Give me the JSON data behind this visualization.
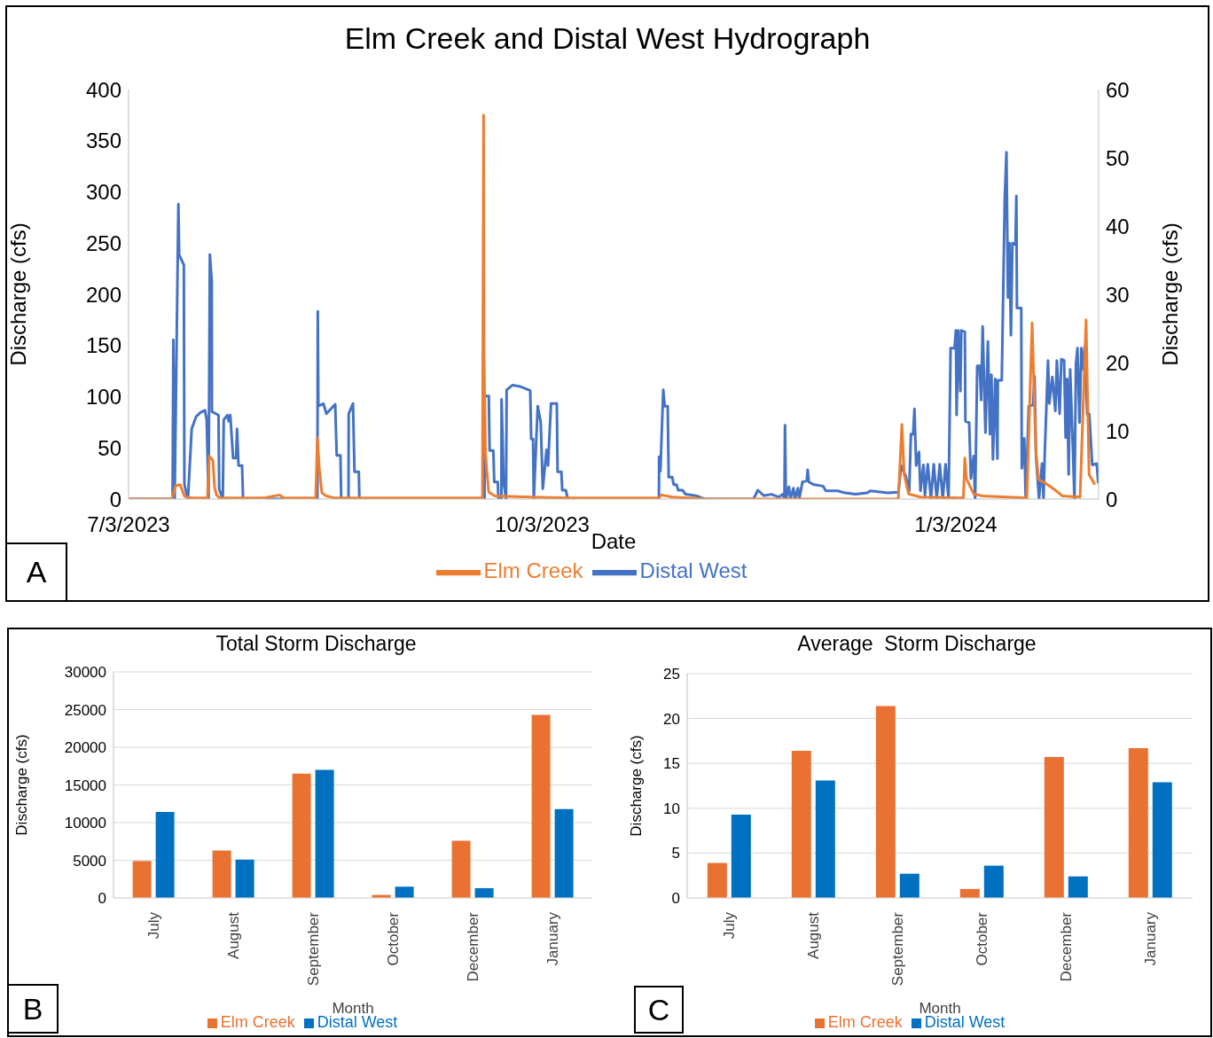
{
  "chart_data": [
    {
      "type": "line",
      "title": "Elm Creek and Distal West Hydrograph",
      "xlabel": "Date",
      "ylabel": "Discharge (cfs)",
      "y2label": "Discharge (cfs)",
      "xlim": [
        "2023-07-03T00:00",
        "2024-02-03T18:00"
      ],
      "xticks": [
        {
          "value": "2023-07-03T00:00",
          "label": "7/3/2023"
        },
        {
          "value": "2023-10-03T00:00",
          "label": "10/3/2023"
        },
        {
          "value": "2024-01-03T00:00",
          "label": "1/3/2024"
        }
      ],
      "ylim": [
        0,
        400
      ],
      "yticks": [
        0,
        50,
        100,
        150,
        200,
        250,
        300,
        350,
        400
      ],
      "y2lim": [
        0,
        60
      ],
      "y2ticks": [
        0,
        10,
        20,
        30,
        40,
        50,
        60
      ],
      "grid": false,
      "legend": "bottom",
      "annotations": [
        "A"
      ],
      "series": [
        {
          "name": "Elm Creek",
          "color": "#ed7d31",
          "x": [
            "2023-07-03T00:00",
            "2023-07-12T16:00",
            "2023-07-13T11:00",
            "2023-07-14T11:00",
            "2023-07-15T10:00",
            "2023-07-16T10:00",
            "2023-07-20T13:00",
            "2023-07-20T23:00",
            "2023-07-21T18:00",
            "2023-07-22T03:00",
            "2023-07-22T13:00",
            "2023-07-23T08:00",
            "2023-08-02T04:00",
            "2023-08-05T13:00",
            "2023-08-06T12:00",
            "2023-08-13T15:00",
            "2023-08-14T00:00",
            "2023-08-14T10:00",
            "2023-08-15T00:00",
            "2023-08-15T23:00",
            "2023-08-17T23:00",
            "2023-09-19T17:00",
            "2023-09-19T23:00",
            "2023-09-20T02:00",
            "2023-09-20T09:00",
            "2023-09-21T02:00",
            "2023-09-22T11:00",
            "2023-09-30T08:00",
            "2023-10-09T05:00",
            "2023-10-28T23:00",
            "2023-10-29T13:00",
            "2023-10-31T22:00",
            "2023-11-08T19:00",
            "2023-12-21T05:00",
            "2023-12-22T00:00",
            "2023-12-22T12:00",
            "2023-12-23T12:00",
            "2023-12-26T03:00",
            "2024-01-04T10:00",
            "2024-01-04T16:00",
            "2024-01-05T00:00",
            "2024-01-05T08:00",
            "2024-01-06T23:00",
            "2024-01-08T23:00",
            "2024-01-18T19:00",
            "2024-01-19T23:00",
            "2024-01-20T19:00",
            "2024-01-21T10:00",
            "2024-01-22T18:00",
            "2024-01-24T17:00",
            "2024-01-26T17:00",
            "2024-01-30T15:00",
            "2024-01-31T23:00",
            "2024-02-01T15:00",
            "2024-02-02T22:00"
          ],
          "values": [
            0,
            0,
            13,
            14,
            3,
            1,
            1,
            42,
            38,
            12,
            4,
            1,
            1,
            4,
            1,
            1,
            60,
            30,
            6,
            3,
            1,
            1,
            375,
            134,
            44,
            7,
            3,
            2,
            1,
            1,
            4,
            2,
            0,
            0,
            73,
            24,
            5,
            2,
            1,
            1,
            40,
            20,
            5,
            3,
            1,
            172,
            47,
            19,
            16,
            10,
            3,
            2,
            175,
            24,
            14
          ]
        },
        {
          "name": "Distal West",
          "color": "#4472c4",
          "axis": "y2",
          "x": [
            "2023-07-03T00:00",
            "2023-07-12T19:00",
            "2023-07-12T23:00",
            "2023-07-13T06:00",
            "2023-07-14T02:00",
            "2023-07-14T06:00",
            "2023-07-15T07:00",
            "2023-07-15T10:00",
            "2023-07-16T05:00",
            "2023-07-17T01:00",
            "2023-07-18T01:00",
            "2023-07-19T01:00",
            "2023-07-20T00:00",
            "2023-07-20T09:00",
            "2023-07-20T19:00",
            "2023-07-21T02:00",
            "2023-07-21T12:00",
            "2023-07-21T13:00",
            "2023-07-23T00:00",
            "2023-07-23T04:00",
            "2023-07-23T23:00",
            "2023-07-24T04:00",
            "2023-07-24T23:00",
            "2023-07-25T07:00",
            "2023-07-25T15:00",
            "2023-07-26T06:00",
            "2023-07-26T22:00",
            "2023-07-27T03:00",
            "2023-07-27T11:00",
            "2023-07-28T06:00",
            "2023-07-28T11:00",
            "2023-08-14T00:00",
            "2023-08-14T02:00",
            "2023-08-14T05:00",
            "2023-08-15T08:00",
            "2023-08-16T00:00",
            "2023-08-17T23:00",
            "2023-08-18T07:00",
            "2023-08-19T03:00",
            "2023-08-19T07:00",
            "2023-08-20T22:00",
            "2023-08-20T23:00",
            "2023-08-21T22:00",
            "2023-08-22T06:00",
            "2023-08-23T05:00",
            "2023-08-23T08:00",
            "2023-09-20T04:00",
            "2023-09-20T05:00",
            "2023-09-21T03:00",
            "2023-09-21T07:00",
            "2023-09-22T03:00",
            "2023-09-22T08:00",
            "2023-09-23T03:00",
            "2023-09-23T06:00",
            "2023-09-23T22:00",
            "2023-09-23T23:00",
            "2023-09-24T10:00",
            "2023-09-24T23:00",
            "2023-09-25T02:00",
            "2023-09-26T10:00",
            "2023-09-28T01:00",
            "2023-09-30T08:00",
            "2023-09-30T13:00",
            "2023-09-30T23:00",
            "2023-10-01T03:00",
            "2023-10-02T00:00",
            "2023-10-02T16:00",
            "2023-10-03T03:00",
            "2023-10-03T23:00",
            "2023-10-04T07:00",
            "2023-10-04T23:00",
            "2023-10-06T06:00",
            "2023-10-06T10:00",
            "2023-10-07T06:00",
            "2023-10-07T11:00",
            "2023-10-08T06:00",
            "2023-10-08T14:00",
            "2023-10-09T05:00",
            "2023-10-28T23:00",
            "2023-10-29T00:00",
            "2023-10-29T07:00",
            "2023-10-29T22:00",
            "2023-10-30T06:00",
            "2023-10-30T22:00",
            "2023-10-31T03:00",
            "2023-10-31T22:00",
            "2023-11-01T06:00",
            "2023-11-01T21:00",
            "2023-11-02T06:00",
            "2023-11-03T05:00",
            "2023-11-03T21:00",
            "2023-11-06T04:00",
            "2023-11-08T03:00",
            "2023-11-19T00:00",
            "2023-11-19T23:00",
            "2023-11-21T07:00",
            "2023-11-22T23:00",
            "2023-11-24T14:00",
            "2023-11-25T13:00",
            "2023-11-25T21:00",
            "2023-11-26T00:00",
            "2023-11-26T05:00",
            "2023-11-26T21:00",
            "2023-11-27T05:00",
            "2023-11-27T21:00",
            "2023-11-28T05:00",
            "2023-11-28T21:00",
            "2023-11-29T04:00",
            "2023-11-29T21:00",
            "2023-11-30T20:00",
            "2023-12-01T01:00",
            "2023-12-01T07:00",
            "2023-12-02T11:00",
            "2023-12-04T11:00",
            "2023-12-05T02:00",
            "2023-12-07T18:00",
            "2023-12-09T09:00",
            "2023-12-11T16:00",
            "2023-12-14T07:00",
            "2023-12-14T23:00",
            "2023-12-18T22:00",
            "2023-12-21T05:00",
            "2023-12-21T20:00",
            "2023-12-22T20:00",
            "2023-12-23T15:00",
            "2023-12-24T00:00",
            "2023-12-24T12:00",
            "2023-12-24T19:00",
            "2023-12-25T04:00",
            "2023-12-25T19:00",
            "2023-12-26T03:00",
            "2023-12-26T19:00",
            "2023-12-27T03:00",
            "2023-12-27T18:00",
            "2023-12-28T11:00",
            "2023-12-29T02:00",
            "2023-12-29T18:00",
            "2023-12-30T10:00",
            "2023-12-31T02:00",
            "2023-12-31T17:00",
            "2024-01-01T09:00",
            "2024-01-01T20:00",
            "2024-01-02T17:00",
            "2024-01-03T00:00",
            "2024-01-03T04:00",
            "2024-01-03T13:00",
            "2024-01-04T00:00",
            "2024-01-04T05:00",
            "2024-01-05T00:00",
            "2024-01-05T03:00",
            "2024-01-05T23:00",
            "2024-01-06T08:00",
            "2024-01-06T23:00",
            "2024-01-07T07:00",
            "2024-01-07T18:00",
            "2024-01-08T07:00",
            "2024-01-08T15:00",
            "2024-01-08T23:00",
            "2024-01-09T14:00",
            "2024-01-10T03:00",
            "2024-01-10T14:00",
            "2024-01-10T22:00",
            "2024-01-11T06:00",
            "2024-01-11T18:00",
            "2024-01-12T06:00",
            "2024-01-12T08:00",
            "2024-01-13T05:00",
            "2024-01-13T21:00",
            "2024-01-14T06:00",
            "2024-01-14T14:00",
            "2024-01-14T22:00",
            "2024-01-15T06:00",
            "2024-01-15T14:00",
            "2024-01-16T06:00",
            "2024-01-16T11:00",
            "2024-01-16T14:00",
            "2024-01-17T13:00",
            "2024-01-17T16:00",
            "2024-01-18T05:00",
            "2024-01-18T13:00",
            "2024-01-19T05:00",
            "2024-01-20T04:00",
            "2024-01-20T12:00",
            "2024-01-20T20:00",
            "2024-01-21T12:00",
            "2024-01-22T04:00",
            "2024-01-22T12:00",
            "2024-01-22T19:00",
            "2024-01-23T12:00",
            "2024-01-23T19:00",
            "2024-01-24T11:00",
            "2024-01-25T03:00",
            "2024-01-25T11:00",
            "2024-01-26T02:00",
            "2024-01-26T11:00",
            "2024-01-27T02:00",
            "2024-01-27T10:00",
            "2024-01-27T18:00",
            "2024-01-28T02:00",
            "2024-01-28T10:00",
            "2024-01-29T01:00",
            "2024-01-29T09:00",
            "2024-01-29T17:00",
            "2024-01-30T01:00",
            "2024-01-30T12:00",
            "2024-01-30T22:00",
            "2024-01-31T09:00",
            "2024-01-31T16:00",
            "2024-02-01T05:00",
            "2024-02-01T16:00",
            "2024-02-02T08:00",
            "2024-02-03T08:00",
            "2024-02-03T16:00"
          ],
          "values": [
            0,
            0,
            23.3,
            0,
            43.2,
            35.8,
            34.3,
            2.1,
            0,
            10.3,
            12.1,
            12.7,
            13.0,
            11.6,
            0,
            35.8,
            31.9,
            12.8,
            12.3,
            1.4,
            0,
            11.6,
            12.3,
            11.4,
            12.3,
            6.0,
            6.0,
            10.3,
            4.9,
            4.9,
            0,
            0,
            27.5,
            13.6,
            14.0,
            12.5,
            13.9,
            6.4,
            6.4,
            0,
            0,
            12.5,
            14.0,
            4.0,
            4.0,
            0,
            0,
            15.1,
            15.1,
            7.1,
            7.1,
            2.5,
            2.5,
            0,
            0,
            14.6,
            2.5,
            0,
            16.0,
            16.7,
            16.5,
            15.9,
            8.8,
            8.8,
            0,
            13.6,
            11.3,
            1.5,
            7.2,
            4.9,
            14.0,
            14.0,
            4.0,
            4.0,
            1.3,
            1.3,
            0.3,
            0,
            0,
            6.2,
            4.1,
            16.0,
            13.6,
            13.6,
            3.2,
            3.2,
            2.1,
            2.1,
            1.3,
            1.3,
            0.7,
            0.5,
            0,
            0,
            1.3,
            0.5,
            0.7,
            0.3,
            0.7,
            0,
            10.8,
            0,
            1.8,
            0,
            1.6,
            0,
            1.6,
            0,
            2.5,
            2.7,
            4.3,
            2.5,
            2.1,
            1.9,
            1.2,
            1.2,
            0.9,
            0.7,
            0.9,
            1.2,
            0.9,
            1.0,
            4.9,
            3.4,
            1.2,
            9.5,
            9.5,
            13.2,
            4.9,
            6.9,
            1.2,
            5.0,
            0.5,
            5.1,
            0,
            5.1,
            0,
            5.1,
            0,
            5.1,
            0,
            22.1,
            22.1,
            24.7,
            12.3,
            24.7,
            15.8,
            24.7,
            24.5,
            11.4,
            11.2,
            3.0,
            6.3,
            0,
            19.5,
            19.5,
            14.5,
            25.3,
            9.7,
            23.1,
            9.5,
            18.2,
            5.8,
            17.6,
            5.9,
            17.4,
            17.4,
            44.0,
            50.8,
            29.5,
            37.5,
            24.0,
            37.5,
            37.3,
            44.4,
            28.0,
            28.0,
            4.5,
            8.9,
            0,
            13.6,
            13.8,
            18.0,
            6.3,
            0,
            5.2,
            0,
            7.1,
            20.3,
            14.0,
            17.9,
            12.9,
            20.3,
            12.5,
            20.5,
            20.3,
            9.0,
            17.6,
            3.6,
            19.0,
            7.1,
            0,
            19.8,
            22.1,
            11.2,
            22.1,
            19.0,
            22.3,
            12.4,
            12.5,
            5.0,
            5.2,
            2.3
          ]
        }
      ]
    },
    {
      "type": "bar",
      "title": "Total Storm Discharge",
      "xlabel": "Month",
      "ylabel": "Discharge (cfs)",
      "categories": [
        "July",
        "August",
        "September",
        "October",
        "December",
        "January"
      ],
      "ylim": [
        0,
        30000
      ],
      "yticks": [
        0,
        5000,
        10000,
        15000,
        20000,
        25000,
        30000
      ],
      "grid": "y",
      "legend": "bottom",
      "annotations": [
        "B"
      ],
      "series": [
        {
          "name": "Elm Creek",
          "color": "#e97132",
          "values": [
            4900,
            6300,
            16500,
            400,
            7600,
            24300
          ]
        },
        {
          "name": "Distal West",
          "color": "#0070c0",
          "values": [
            11400,
            5100,
            17000,
            1500,
            1300,
            11800
          ]
        }
      ]
    },
    {
      "type": "bar",
      "title": "Average  Storm Discharge",
      "xlabel": "Month",
      "ylabel": "Discharge (cfs)",
      "categories": [
        "July",
        "August",
        "September",
        "October",
        "December",
        "January"
      ],
      "ylim": [
        0,
        25
      ],
      "yticks": [
        0,
        5,
        10,
        15,
        20,
        25
      ],
      "grid": "y",
      "legend": "bottom",
      "annotations": [
        "C"
      ],
      "series": [
        {
          "name": "Elm Creek",
          "color": "#e97132",
          "values": [
            3.9,
            16.4,
            21.4,
            1.0,
            15.7,
            16.7
          ]
        },
        {
          "name": "Distal West",
          "color": "#0070c0",
          "values": [
            9.3,
            13.1,
            2.7,
            3.6,
            2.4,
            12.9
          ]
        }
      ]
    }
  ]
}
